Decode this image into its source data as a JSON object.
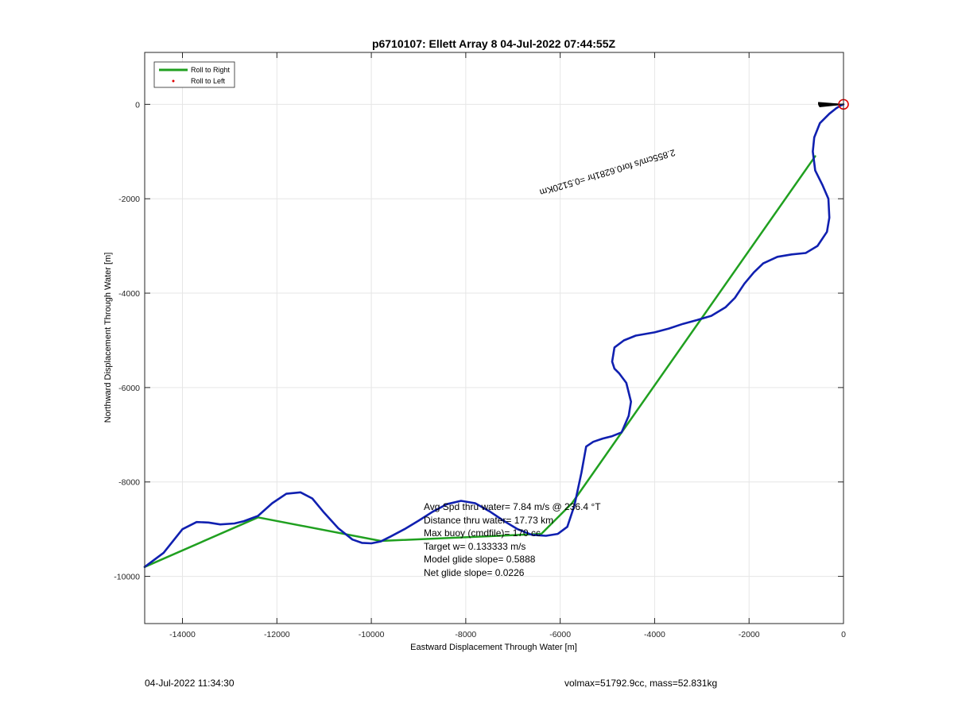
{
  "chart_data": {
    "type": "line",
    "title": "p6710107: Ellett Array 8 04-Jul-2022 07:44:55Z",
    "xlabel": "Eastward Displacement Through Water [m]",
    "ylabel": "Northward Displacement Through Water [m]",
    "xlim": [
      -14800,
      0
    ],
    "ylim": [
      -11000,
      1100
    ],
    "xticks": [
      -14000,
      -12000,
      -10000,
      -8000,
      -6000,
      -4000,
      -2000,
      0
    ],
    "yticks": [
      0,
      -2000,
      -4000,
      -6000,
      -8000,
      -10000
    ],
    "grid": true,
    "legend_position": "top-left",
    "legend": [
      {
        "label": "Roll to Right",
        "color": "#20a020",
        "style": "line"
      },
      {
        "label": "Roll to Left",
        "color": "#e00000",
        "style": "dot"
      }
    ],
    "series": [
      {
        "name": "Roll to Right",
        "color": "#20a020",
        "x": [
          -14800,
          -12400,
          -9800,
          -6400,
          -5750,
          -600
        ],
        "y": [
          -9800,
          -8750,
          -9250,
          -9100,
          -8450,
          -1100
        ]
      },
      {
        "color": "#1020b0",
        "x": [
          -14800,
          -14400,
          -14000,
          -13700,
          -13450,
          -13200,
          -12900,
          -12700,
          -12400,
          -12100,
          -11800,
          -11500,
          -11250,
          -11000,
          -10700,
          -10400,
          -10200,
          -10000,
          -9800,
          -9600,
          -9300,
          -9000,
          -8700,
          -8400,
          -8100,
          -7800,
          -7500,
          -7200,
          -6900,
          -6600,
          -6300,
          -6050,
          -5850,
          -5700,
          -5550,
          -5450,
          -5300,
          -5100,
          -4900,
          -4700,
          -4550,
          -4500,
          -4600,
          -4750,
          -4850,
          -4900,
          -4850,
          -4650,
          -4400,
          -4000,
          -3700,
          -3400,
          -3100,
          -2800,
          -2500,
          -2300,
          -2100,
          -1900,
          -1700,
          -1400,
          -1100,
          -800,
          -550,
          -350,
          -300,
          -320,
          -450,
          -600,
          -650,
          -620,
          -500,
          -300,
          -150,
          -50,
          0
        ],
        "y": [
          -9800,
          -9500,
          -9000,
          -8850,
          -8860,
          -8900,
          -8880,
          -8830,
          -8720,
          -8450,
          -8250,
          -8220,
          -8350,
          -8650,
          -8980,
          -9220,
          -9290,
          -9300,
          -9260,
          -9160,
          -9000,
          -8820,
          -8630,
          -8470,
          -8400,
          -8450,
          -8620,
          -8820,
          -9000,
          -9120,
          -9140,
          -9100,
          -8950,
          -8500,
          -7800,
          -7250,
          -7150,
          -7080,
          -7030,
          -6950,
          -6600,
          -6300,
          -5900,
          -5700,
          -5600,
          -5450,
          -5150,
          -5000,
          -4900,
          -4830,
          -4750,
          -4650,
          -4570,
          -4480,
          -4300,
          -4100,
          -3800,
          -3560,
          -3370,
          -3230,
          -3180,
          -3150,
          -3000,
          -2700,
          -2400,
          -2000,
          -1700,
          -1400,
          -1000,
          -700,
          -400,
          -200,
          -80,
          -20,
          0
        ]
      }
    ],
    "markers": [
      {
        "label": "end-point",
        "x": 0,
        "y": 0,
        "color": "#e00000",
        "shape": "circle"
      }
    ],
    "annotations": {
      "drift_label": "2.855cm/s for0.6281hr =0.5120Km",
      "stats": [
        "Avg Spd thru water=  7.84 m/s @ 236.4 °T",
        "Distance thru water= 17.73 km",
        "Max buoy (cmdfile)= 170 cc",
        "Target w= 0.133333 m/s",
        "Model glide slope= 0.5888",
        "Net glide slope= 0.0226"
      ]
    }
  },
  "footer": {
    "timestamp": "04-Jul-2022 11:34:30",
    "vehicle_info": "volmax=51792.9cc, mass=52.831kg"
  }
}
